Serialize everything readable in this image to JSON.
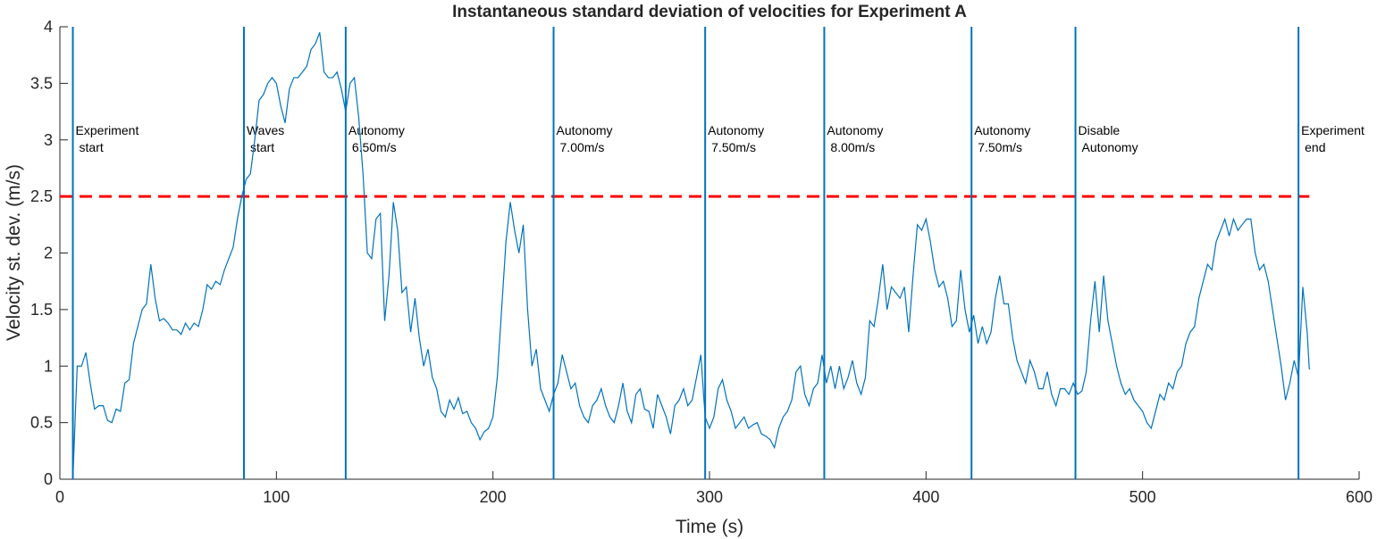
{
  "chart_data": {
    "type": "line",
    "title": "Instantaneous standard deviation of velocities for Experiment A",
    "x_label": "Time (s)",
    "y_label": "Velocity st. dev. (m/s)",
    "xlim": [
      0,
      600
    ],
    "xticks": [
      0,
      100,
      200,
      300,
      400,
      500,
      600
    ],
    "ylim": [
      0,
      4
    ],
    "yticks": [
      0,
      0.5,
      1,
      1.5,
      2,
      2.5,
      3,
      3.5,
      4
    ],
    "x": [
      6,
      7,
      8,
      10,
      12,
      14,
      16,
      18,
      20,
      22,
      24,
      26,
      28,
      30,
      32,
      34,
      36,
      38,
      40,
      42,
      44,
      46,
      48,
      50,
      52,
      54,
      56,
      58,
      60,
      62,
      64,
      66,
      68,
      70,
      72,
      74,
      76,
      78,
      80,
      82,
      84,
      86,
      88,
      90,
      92,
      94,
      96,
      98,
      100,
      102,
      104,
      106,
      108,
      110,
      112,
      114,
      116,
      118,
      120,
      122,
      124,
      126,
      128,
      130,
      132,
      134,
      136,
      138,
      140,
      142,
      144,
      146,
      148,
      150,
      152,
      154,
      156,
      158,
      160,
      162,
      164,
      166,
      168,
      170,
      172,
      174,
      176,
      178,
      180,
      182,
      184,
      186,
      188,
      190,
      192,
      194,
      196,
      198,
      200,
      202,
      204,
      206,
      208,
      210,
      212,
      214,
      216,
      218,
      220,
      222,
      224,
      226,
      228,
      230,
      232,
      234,
      236,
      238,
      240,
      242,
      244,
      246,
      248,
      250,
      252,
      254,
      256,
      258,
      260,
      262,
      264,
      266,
      268,
      270,
      272,
      274,
      276,
      278,
      280,
      282,
      284,
      286,
      288,
      290,
      292,
      294,
      296,
      298,
      300,
      302,
      304,
      306,
      308,
      310,
      312,
      314,
      316,
      318,
      320,
      322,
      324,
      326,
      328,
      330,
      332,
      334,
      336,
      338,
      340,
      342,
      344,
      346,
      348,
      350,
      352,
      354,
      356,
      358,
      360,
      362,
      364,
      366,
      368,
      370,
      372,
      374,
      376,
      378,
      380,
      382,
      384,
      386,
      388,
      390,
      392,
      394,
      396,
      398,
      400,
      402,
      404,
      406,
      408,
      410,
      412,
      414,
      416,
      418,
      420,
      422,
      424,
      426,
      428,
      430,
      432,
      434,
      436,
      438,
      440,
      442,
      444,
      446,
      448,
      450,
      452,
      454,
      456,
      458,
      460,
      462,
      464,
      466,
      468,
      470,
      472,
      474,
      476,
      478,
      480,
      482,
      484,
      486,
      488,
      490,
      492,
      494,
      496,
      498,
      500,
      502,
      504,
      506,
      508,
      510,
      512,
      514,
      516,
      518,
      520,
      522,
      524,
      526,
      528,
      530,
      532,
      534,
      536,
      538,
      540,
      542,
      544,
      546,
      548,
      550,
      552,
      554,
      556,
      558,
      560,
      562,
      564,
      566,
      568,
      570,
      572,
      574,
      576,
      577
    ],
    "series": [
      {
        "color": "#0072bd",
        "values": [
          0,
          0.5,
          1.0,
          1.0,
          1.12,
          0.85,
          0.62,
          0.65,
          0.65,
          0.52,
          0.5,
          0.62,
          0.6,
          0.85,
          0.88,
          1.2,
          1.35,
          1.5,
          1.55,
          1.9,
          1.6,
          1.4,
          1.42,
          1.38,
          1.32,
          1.32,
          1.28,
          1.38,
          1.32,
          1.38,
          1.35,
          1.5,
          1.72,
          1.68,
          1.75,
          1.72,
          1.85,
          1.95,
          2.05,
          2.3,
          2.5,
          2.65,
          2.7,
          3.0,
          3.35,
          3.4,
          3.5,
          3.55,
          3.5,
          3.3,
          3.15,
          3.45,
          3.55,
          3.55,
          3.6,
          3.65,
          3.8,
          3.85,
          3.95,
          3.6,
          3.55,
          3.55,
          3.6,
          3.45,
          3.25,
          3.5,
          3.55,
          3.2,
          2.7,
          2.0,
          1.95,
          2.3,
          2.35,
          1.4,
          1.8,
          2.45,
          2.2,
          1.65,
          1.7,
          1.3,
          1.6,
          1.25,
          1.0,
          1.15,
          0.9,
          0.8,
          0.6,
          0.55,
          0.7,
          0.62,
          0.72,
          0.58,
          0.6,
          0.5,
          0.45,
          0.35,
          0.42,
          0.45,
          0.55,
          0.9,
          1.5,
          2.1,
          2.45,
          2.2,
          2.0,
          2.25,
          1.5,
          1.0,
          1.15,
          0.8,
          0.7,
          0.6,
          0.75,
          0.85,
          1.1,
          0.95,
          0.8,
          0.85,
          0.65,
          0.55,
          0.5,
          0.65,
          0.7,
          0.8,
          0.65,
          0.55,
          0.5,
          0.65,
          0.85,
          0.6,
          0.5,
          0.75,
          0.8,
          0.62,
          0.6,
          0.45,
          0.75,
          0.65,
          0.55,
          0.4,
          0.65,
          0.7,
          0.8,
          0.65,
          0.7,
          0.9,
          1.1,
          0.55,
          0.45,
          0.55,
          0.8,
          0.88,
          0.7,
          0.6,
          0.45,
          0.5,
          0.55,
          0.45,
          0.48,
          0.5,
          0.4,
          0.38,
          0.35,
          0.28,
          0.45,
          0.55,
          0.6,
          0.7,
          0.95,
          1.0,
          0.75,
          0.65,
          0.8,
          0.85,
          1.1,
          0.85,
          1.0,
          0.8,
          1.0,
          0.8,
          0.9,
          1.05,
          0.85,
          0.75,
          0.9,
          1.4,
          1.35,
          1.6,
          1.9,
          1.5,
          1.7,
          1.65,
          1.6,
          1.7,
          1.3,
          1.8,
          2.25,
          2.2,
          2.3,
          2.1,
          1.85,
          1.7,
          1.75,
          1.6,
          1.35,
          1.4,
          1.85,
          1.5,
          1.3,
          1.45,
          1.2,
          1.35,
          1.2,
          1.3,
          1.6,
          1.8,
          1.55,
          1.55,
          1.25,
          1.05,
          0.95,
          0.85,
          1.05,
          0.95,
          0.8,
          0.8,
          0.95,
          0.75,
          0.65,
          0.8,
          0.8,
          0.75,
          0.85,
          0.75,
          0.78,
          0.95,
          1.4,
          1.75,
          1.3,
          1.8,
          1.4,
          1.2,
          1.0,
          0.85,
          0.75,
          0.8,
          0.7,
          0.65,
          0.6,
          0.5,
          0.45,
          0.6,
          0.75,
          0.7,
          0.85,
          0.8,
          0.95,
          1.0,
          1.2,
          1.3,
          1.35,
          1.6,
          1.75,
          1.9,
          1.85,
          2.1,
          2.2,
          2.3,
          2.15,
          2.3,
          2.2,
          2.25,
          2.3,
          2.3,
          2.0,
          1.85,
          1.9,
          1.75,
          1.5,
          1.25,
          1.0,
          0.7,
          0.85,
          1.05,
          0.9,
          1.7,
          1.3,
          0.97
        ]
      }
    ],
    "reference_line": {
      "y": 2.5,
      "x": [
        0,
        577
      ],
      "color": "#ff0000",
      "dashed": true
    },
    "events": [
      {
        "x": 6,
        "lines": [
          "Experiment",
          "start"
        ]
      },
      {
        "x": 85,
        "lines": [
          "Waves",
          "start"
        ]
      },
      {
        "x": 132,
        "lines": [
          "Autonomy",
          "6.50m/s"
        ]
      },
      {
        "x": 228,
        "lines": [
          "Autonomy",
          "7.00m/s"
        ]
      },
      {
        "x": 298,
        "lines": [
          "Autonomy",
          "7.50m/s"
        ]
      },
      {
        "x": 353,
        "lines": [
          "Autonomy",
          "8.00m/s"
        ]
      },
      {
        "x": 421,
        "lines": [
          "Autonomy",
          "7.50m/s"
        ]
      },
      {
        "x": 469,
        "lines": [
          "Disable",
          "Autonomy"
        ]
      },
      {
        "x": 572,
        "lines": [
          "Experiment",
          "end"
        ]
      }
    ],
    "event_color": "#0072bd"
  }
}
